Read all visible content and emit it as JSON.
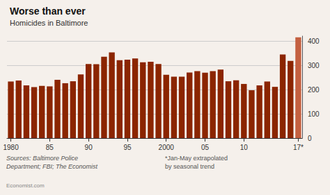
{
  "chart_data": {
    "type": "bar",
    "title": "Worse than ever",
    "subtitle": "Homicides in Baltimore",
    "categories": [
      "1980",
      null,
      null,
      null,
      null,
      "85",
      null,
      null,
      null,
      null,
      "90",
      null,
      null,
      null,
      null,
      "95",
      null,
      null,
      null,
      null,
      "2000",
      null,
      null,
      null,
      null,
      "05",
      null,
      null,
      null,
      null,
      "10",
      null,
      null,
      null,
      null,
      null,
      null,
      "17*"
    ],
    "values": [
      233,
      237,
      217,
      210,
      215,
      213,
      240,
      226,
      234,
      262,
      305,
      304,
      335,
      353,
      321,
      323,
      328,
      312,
      314,
      305,
      261,
      253,
      253,
      270,
      276,
      269,
      276,
      282,
      234,
      238,
      223,
      197,
      217,
      233,
      211,
      344,
      318,
      415
    ],
    "colors": [
      "#8B2500",
      "#8B2500",
      "#8B2500",
      "#8B2500",
      "#8B2500",
      "#8B2500",
      "#8B2500",
      "#8B2500",
      "#8B2500",
      "#8B2500",
      "#8B2500",
      "#8B2500",
      "#8B2500",
      "#8B2500",
      "#8B2500",
      "#8B2500",
      "#8B2500",
      "#8B2500",
      "#8B2500",
      "#8B2500",
      "#8B2500",
      "#8B2500",
      "#8B2500",
      "#8B2500",
      "#8B2500",
      "#8B2500",
      "#8B2500",
      "#8B2500",
      "#8B2500",
      "#8B2500",
      "#8B2500",
      "#8B2500",
      "#8B2500",
      "#8B2500",
      "#8B2500",
      "#8B2500",
      "#8B2500",
      "#C46040"
    ],
    "ylim": [
      0,
      420
    ],
    "yticks": [
      0,
      100,
      200,
      300,
      400
    ],
    "grid": true,
    "annotations": [
      "Sources: Baltimore Police\nDepartment; FBI; The Economist",
      "*Jan-May extrapolated\nby seasonal trend",
      "Economist.com"
    ]
  }
}
